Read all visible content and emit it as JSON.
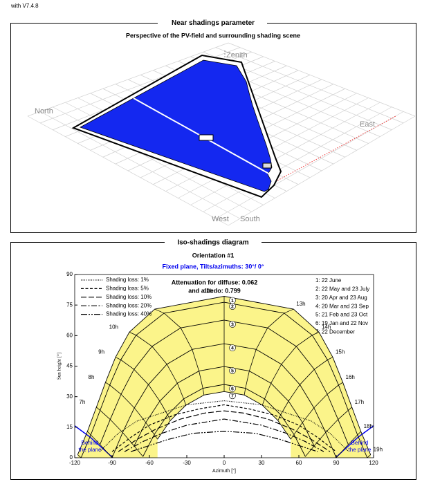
{
  "header": {
    "version": "with V7.4.8"
  },
  "near_shadings": {
    "title": "Near shadings parameter",
    "subtitle": "Perspective of the PV-field and surrounding shading scene",
    "labels": {
      "zenith": "Zenith",
      "north": "North",
      "east": "East",
      "west": "West",
      "south": "South"
    }
  },
  "chart_data": {
    "type": "line",
    "title": "Iso-shadings diagram",
    "subtitle": "Orientation #1",
    "plane_label": "Fixed plane, Tilts/azimuths: 30°/ 0°",
    "xlabel": "Azimuth [°]",
    "ylabel": "Sun height [°]",
    "xlim": [
      -120,
      120
    ],
    "xticks": [
      -120,
      -90,
      -60,
      -30,
      0,
      30,
      60,
      90,
      120
    ],
    "ylim": [
      0,
      90
    ],
    "yticks": [
      0,
      15,
      30,
      45,
      60,
      75,
      90
    ],
    "annotation": [
      "Attenuation for diffuse: 0.062",
      "and albedo: 0.799"
    ],
    "behind_plane": [
      "Behind",
      "the plane"
    ],
    "hours": [
      null,
      null,
      "7h",
      "8h",
      "9h",
      "10h",
      null,
      "12h",
      "13h",
      "14h",
      "15h",
      "16h",
      "17h",
      "18h",
      "19h"
    ],
    "sun_paths": [
      {
        "name": "1: 22 June",
        "marker": "1",
        "x": [
          -117.6,
          -109.8,
          -102.6,
          -95.3,
          -87.2,
          -76.1,
          -55.7,
          0,
          55.7,
          76.1,
          87.2,
          95.3,
          102.6,
          109.8,
          117.6
        ],
        "values": [
          1.5,
          12.9,
          24.8,
          37.0,
          49.4,
          61.7,
          73.0,
          79.3,
          73.0,
          61.7,
          49.4,
          37.0,
          24.8,
          12.9,
          1.5
        ]
      },
      {
        "name": "2: 22 May and 23 July",
        "marker": "2",
        "x": [
          -114.9,
          -107.1,
          -99.6,
          -91.9,
          -83.0,
          -70.7,
          -48.2,
          0,
          48.2,
          70.7,
          83.0,
          91.9,
          99.6,
          107.1,
          114.9
        ],
        "values": [
          0,
          11.2,
          23.3,
          35.7,
          48.1,
          60.2,
          71.0,
          76.4,
          71.0,
          60.2,
          48.1,
          35.7,
          23.3,
          11.2,
          0
        ]
      },
      {
        "name": "3: 20 Apr and 23 Aug",
        "marker": "3",
        "x": [
          null,
          -99.7,
          -91.5,
          -82.8,
          -72.4,
          -57.9,
          -34.9,
          0,
          34.9,
          57.9,
          72.4,
          82.8,
          91.5,
          99.7,
          null
        ],
        "values": [
          null,
          6.5,
          18.8,
          31.2,
          43.4,
          54.7,
          63.8,
          67.6,
          63.8,
          54.7,
          43.4,
          31.2,
          18.8,
          6.5,
          null
        ]
      },
      {
        "name": "4: 20 Mar and 23 Sep",
        "marker": "4",
        "x": [
          null,
          -90,
          -81.5,
          -72.1,
          -60.8,
          -46.0,
          -25.7,
          0,
          25.7,
          46.0,
          60.8,
          72.1,
          81.5,
          90,
          null
        ],
        "values": [
          null,
          0,
          12.4,
          24.5,
          35.9,
          45.9,
          53.2,
          56,
          53.2,
          45.9,
          35.9,
          24.5,
          12.4,
          0,
          null
        ]
      },
      {
        "name": "5: 21 Feb and 23 Oct",
        "marker": "5",
        "x": [
          null,
          null,
          -72.3,
          -62.9,
          -51.7,
          -37.6,
          -20.2,
          0,
          20.2,
          37.6,
          51.7,
          62.9,
          72.3,
          null,
          null
        ],
        "values": [
          null,
          null,
          5.8,
          17.3,
          27.8,
          36.6,
          42.6,
          44.8,
          42.6,
          36.6,
          27.8,
          17.3,
          5.8,
          null,
          null
        ]
      },
      {
        "name": "6: 19 Jan and 22 Nov",
        "marker": "6",
        "x": [
          null,
          null,
          -65.2,
          -56.1,
          -45.4,
          -32.5,
          -17.1,
          0,
          17.1,
          32.5,
          45.4,
          56.1,
          65.2,
          null,
          null
        ],
        "values": [
          null,
          null,
          0.6,
          11.4,
          21.1,
          28.9,
          34.1,
          36.0,
          34.1,
          28.9,
          21.1,
          11.4,
          0.6,
          null,
          null
        ]
      },
      {
        "name": "7: 22 December",
        "marker": "7",
        "x": [
          null,
          null,
          null,
          -53.5,
          -43.2,
          -30.7,
          -16.2,
          0,
          16.2,
          30.7,
          43.2,
          53.5,
          null,
          null,
          null
        ],
        "values": [
          null,
          null,
          null,
          9.1,
          18.3,
          25.8,
          30.8,
          32.5,
          30.8,
          25.8,
          18.3,
          9.1,
          null,
          null,
          null
        ]
      }
    ],
    "series": [
      {
        "name": "Shading loss: 1%",
        "dash": "1 1.5",
        "color": "#000000",
        "x": [
          -100,
          -85,
          -70,
          -50,
          -30,
          0,
          30,
          50,
          70,
          85,
          100
        ],
        "values": [
          3,
          12,
          18,
          22,
          26,
          28,
          26,
          22,
          18,
          12,
          3
        ]
      },
      {
        "name": "Shading loss: 5%",
        "dash": "4 2.5",
        "color": "#000000",
        "x": [
          -90,
          -75,
          -60,
          -40,
          -20,
          0,
          20,
          40,
          60,
          75,
          90
        ],
        "values": [
          3,
          10,
          16,
          21,
          24,
          26,
          24,
          21,
          16,
          10,
          3
        ]
      },
      {
        "name": "Shading loss: 10%",
        "dash": "8 3",
        "color": "#000000",
        "x": [
          -85,
          -70,
          -55,
          -35,
          -15,
          0,
          15,
          35,
          55,
          70,
          85
        ],
        "values": [
          3,
          9,
          14,
          19,
          22,
          23,
          22,
          19,
          14,
          9,
          3
        ]
      },
      {
        "name": "Shading loss: 20%",
        "dash": "8 2.5 2 2.5",
        "color": "#000000",
        "x": [
          -80,
          -65,
          -50,
          -30,
          -10,
          0,
          10,
          30,
          50,
          65,
          80
        ],
        "values": [
          3,
          8,
          12,
          16,
          18,
          19,
          18,
          16,
          12,
          8,
          3
        ]
      },
      {
        "name": "Shading loss: 40%",
        "dash": "9 2 2 2 2 2",
        "color": "#000000",
        "x": [
          -75,
          -60,
          -45,
          -25,
          0,
          25,
          45,
          60,
          75
        ],
        "values": [
          3,
          6,
          9,
          12,
          13,
          12,
          9,
          6,
          3
        ]
      }
    ],
    "fill_color": "#fbf48a",
    "plane_color": "#0000ee"
  }
}
